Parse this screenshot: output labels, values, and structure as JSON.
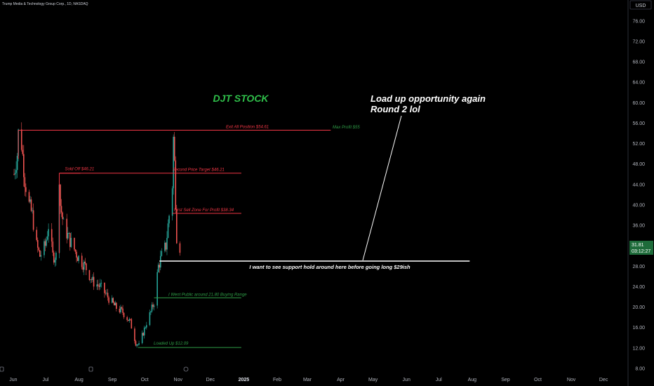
{
  "header": {
    "symbol_line": "Trump Media & Technology Group Corp., 1D, NASDAQ",
    "currency": "USD"
  },
  "price_badge": {
    "price": "31.81",
    "countdown": "03:12:27",
    "color": "#1e6b3a"
  },
  "colors": {
    "up": "#26a69a",
    "down": "#ef5350",
    "red_line": "#f23645",
    "green_line": "#2e9c46",
    "white": "#ffffff",
    "title_green": "#2fbf4a"
  },
  "chart_data": {
    "type": "candlestick",
    "title": "DJT STOCK",
    "y_axis": {
      "ticks": [
        "76.00",
        "72.00",
        "68.00",
        "64.00",
        "60.00",
        "56.00",
        "52.00",
        "48.00",
        "44.00",
        "40.00",
        "36.00",
        "32.00",
        "28.00",
        "24.00",
        "20.00",
        "16.00",
        "12.00",
        "8.00"
      ],
      "range": [
        7.5,
        78
      ]
    },
    "x_axis": {
      "labels": [
        "Jun",
        "Jul",
        "Aug",
        "Sep",
        "Oct",
        "Nov",
        "Dec",
        "2025",
        "Feb",
        "Mar",
        "Apr",
        "May",
        "Jun",
        "Jul",
        "Aug",
        "Sep",
        "Oct",
        "Nov",
        "Dec"
      ]
    },
    "price_path": [
      [
        "2024-06-03",
        46
      ],
      [
        "2024-06-06",
        50
      ],
      [
        "2024-06-07",
        54
      ],
      [
        "2024-06-10",
        52
      ],
      [
        "2024-06-13",
        45
      ],
      [
        "2024-06-17",
        40
      ],
      [
        "2024-06-20",
        38
      ],
      [
        "2024-06-24",
        32
      ],
      [
        "2024-06-27",
        30
      ],
      [
        "2024-07-02",
        32
      ],
      [
        "2024-07-05",
        36
      ],
      [
        "2024-07-09",
        30
      ],
      [
        "2024-07-12",
        30
      ],
      [
        "2024-07-15",
        46
      ],
      [
        "2024-07-16",
        40
      ],
      [
        "2024-07-19",
        36
      ],
      [
        "2024-07-25",
        33
      ],
      [
        "2024-08-01",
        30
      ],
      [
        "2024-08-08",
        28
      ],
      [
        "2024-08-15",
        25
      ],
      [
        "2024-08-22",
        24
      ],
      [
        "2024-08-29",
        22
      ],
      [
        "2024-09-05",
        20
      ],
      [
        "2024-09-12",
        19
      ],
      [
        "2024-09-19",
        17
      ],
      [
        "2024-09-24",
        13
      ],
      [
        "2024-09-27",
        12.5
      ],
      [
        "2024-10-01",
        15
      ],
      [
        "2024-10-04",
        17
      ],
      [
        "2024-10-08",
        19
      ],
      [
        "2024-10-11",
        21
      ],
      [
        "2024-10-15",
        28
      ],
      [
        "2024-10-18",
        30
      ],
      [
        "2024-10-22",
        32
      ],
      [
        "2024-10-25",
        38
      ],
      [
        "2024-10-28",
        44
      ],
      [
        "2024-10-29",
        53
      ],
      [
        "2024-10-30",
        48
      ],
      [
        "2024-10-31",
        41
      ],
      [
        "2024-11-01",
        34
      ],
      [
        "2024-11-04",
        31.8
      ]
    ],
    "levels": [
      {
        "label": "Exit All Position $54.61",
        "price": 54.61,
        "color": "red",
        "from": "2024-06-07",
        "to": "2025-03-24"
      },
      {
        "label": "Sold Off $46.21",
        "price": 46.21,
        "color": "red",
        "from": "2024-07-15",
        "to": "2024-07-15"
      },
      {
        "label": "Second Price Target $46.21",
        "price": 46.21,
        "color": "red",
        "from": "2024-07-15",
        "to": "2024-12-31"
      },
      {
        "label": "First Sell Zone For Profit $38.34",
        "price": 38.34,
        "color": "red",
        "from": "2024-10-28",
        "to": "2024-12-31"
      },
      {
        "label": "I Went Public around 21.80 Buying Range",
        "price": 21.8,
        "color": "green",
        "from": "2024-10-11",
        "to": "2024-12-31"
      },
      {
        "label": "Loaded Up $12.09",
        "price": 12.09,
        "color": "green",
        "from": "2024-09-26",
        "to": "2024-12-31"
      },
      {
        "label": "I want to see support hold around here before going long $29ish",
        "price": 29.0,
        "color": "white",
        "from": "2024-10-16",
        "to": "2025-07-31"
      }
    ],
    "annotations": {
      "max_profit": "Max Profit $55",
      "callout_line1": "Load up opportunity again",
      "callout_line2": "Round 2 lol"
    }
  }
}
